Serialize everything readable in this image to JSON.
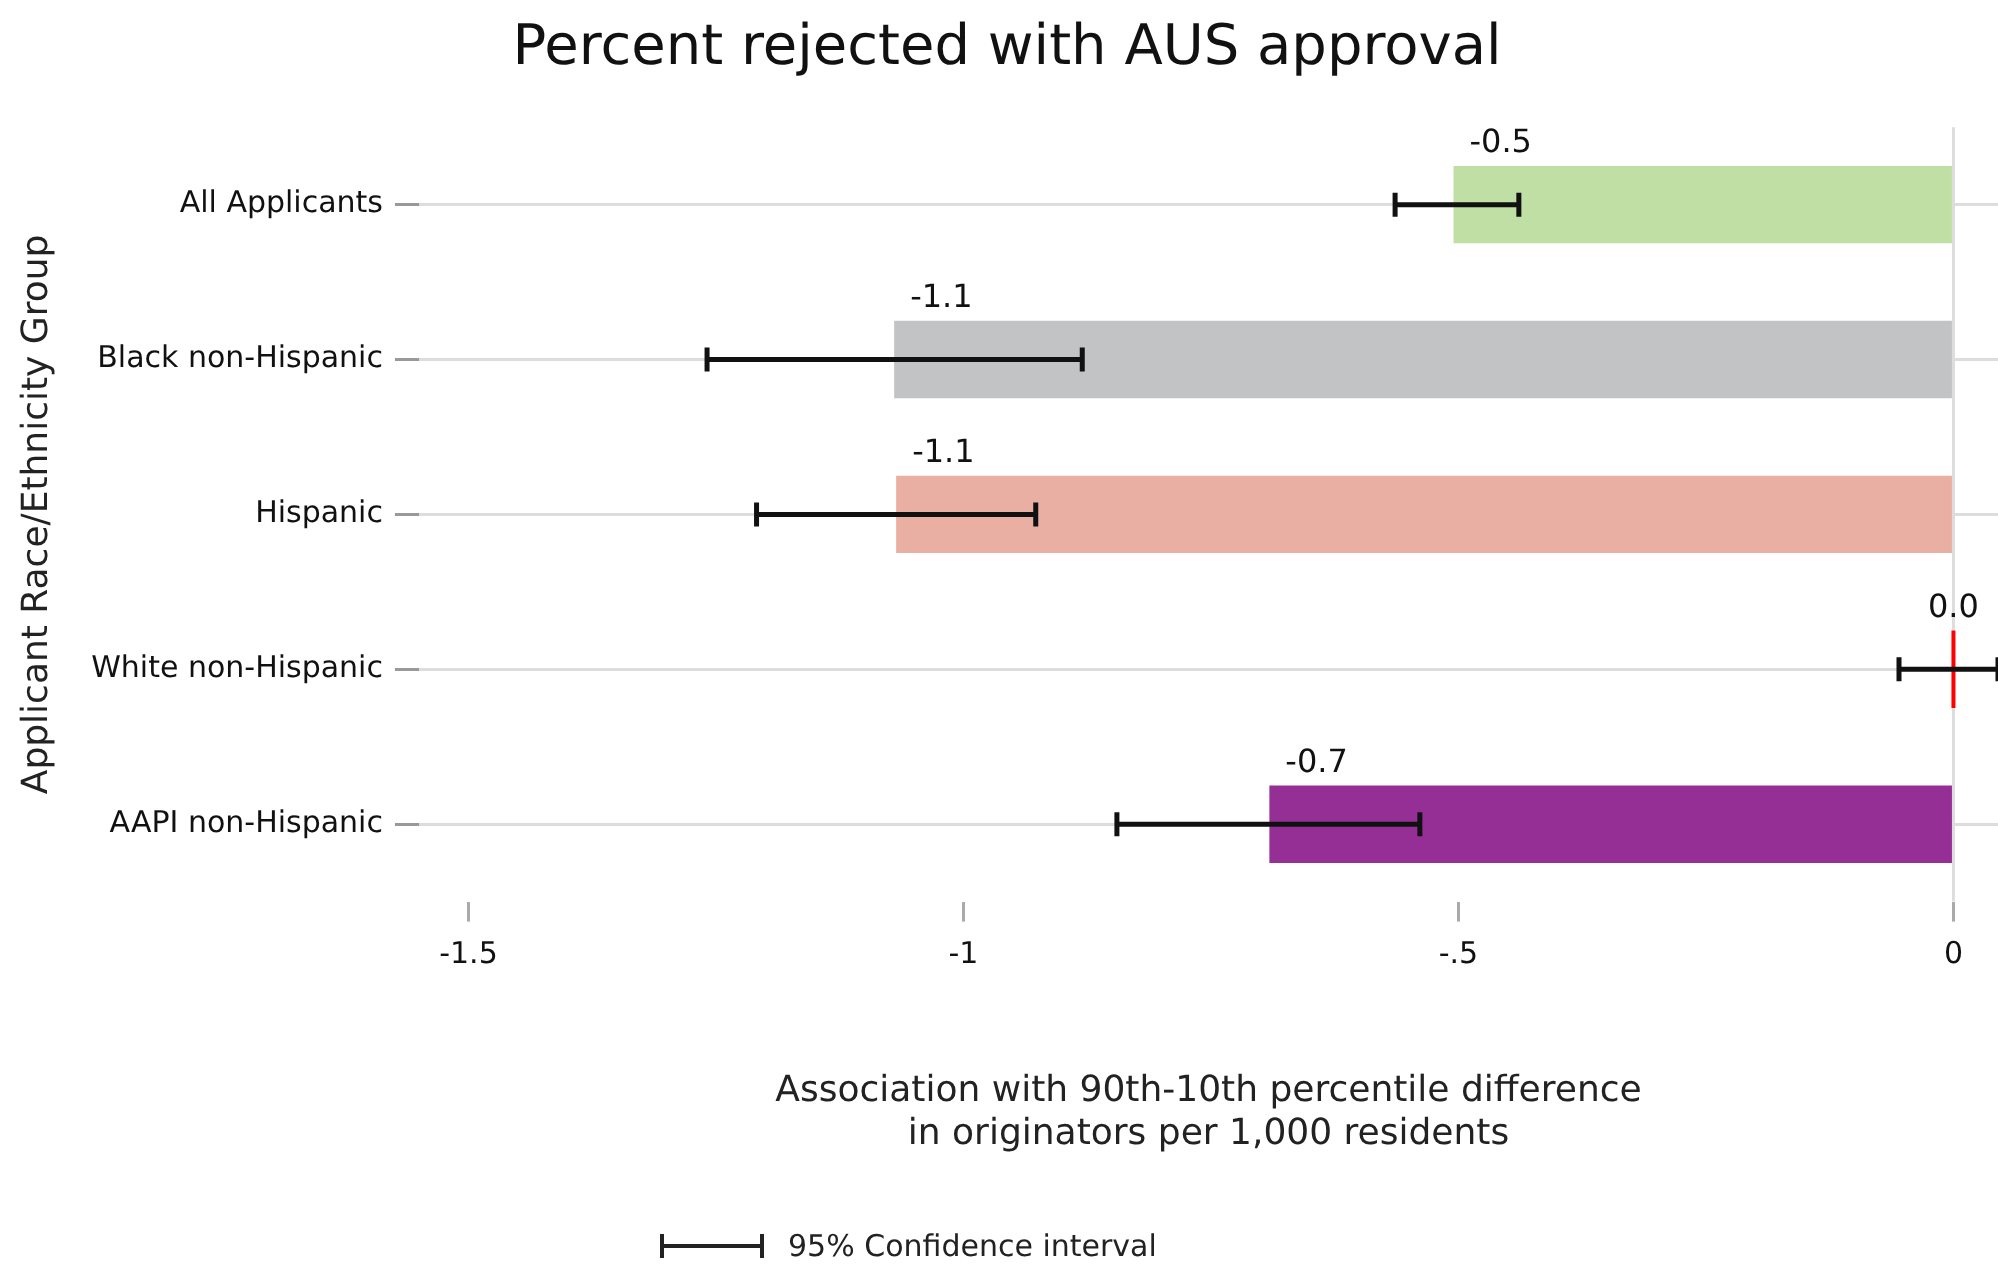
{
  "chart_data": {
    "type": "bar",
    "orientation": "horizontal",
    "title": "Percent rejected with AUS approval",
    "ylabel": "Applicant Race/Ethnicity Group",
    "xlabel": "Association with 90th-10th percentile difference\nin originators per 1,000 residents",
    "categories": [
      "All Applicants",
      "Black non-Hispanic",
      "Hispanic",
      "White non-Hispanic",
      "AAPI non-Hispanic"
    ],
    "values": [
      -0.505,
      -1.07,
      -1.068,
      0,
      -0.691
    ],
    "colors": [
      "#bfdfa4",
      "#c2c3c5",
      "#e9afa3",
      "#ff0000",
      "#952f96"
    ],
    "errors": [
      [
        -0.564,
        -0.439
      ],
      [
        -1.259,
        -0.88
      ],
      [
        -1.209,
        -0.927
      ],
      [
        -0.055,
        0.045
      ],
      [
        -0.845,
        -0.539
      ]
    ],
    "value_labels": [
      "-0.5",
      "-1.1",
      "-1.1",
      "0.0",
      "-0.7"
    ],
    "xlim": [
      -1.55,
      0.045
    ],
    "xticks": [
      {
        "value": -1.5,
        "label": "-1.5"
      },
      -1,
      {
        "value": -0.5,
        "label": "-.5"
      },
      0
    ],
    "ref_lines": [
      {
        "axis": "x",
        "value": 0,
        "color": "#dddddd"
      }
    ],
    "grid": "y",
    "annotations": [
      "95% Confidence interval"
    ]
  }
}
